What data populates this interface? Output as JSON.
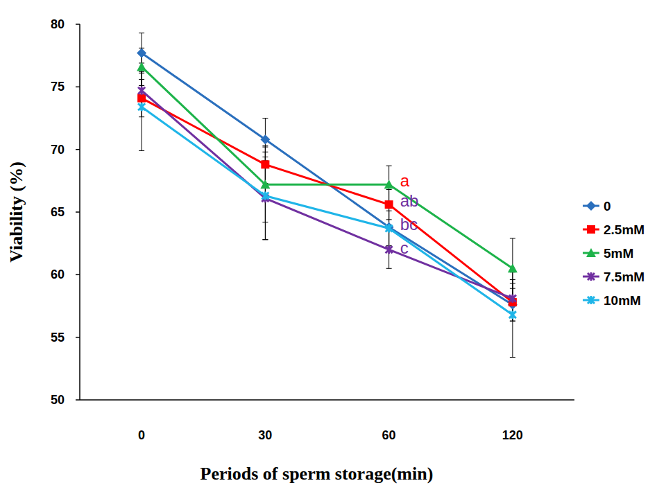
{
  "chart_data": {
    "type": "line",
    "x_label": "Periods of sperm storage(min)",
    "y_label": "Viability (%)",
    "categories": [
      "0",
      "30",
      "60",
      "120"
    ],
    "ylim": [
      50,
      80
    ],
    "yticks": [
      50,
      55,
      60,
      65,
      70,
      75,
      80
    ],
    "grid": false,
    "legend": "right",
    "series": [
      {
        "name": "0",
        "color": "#2a6fbd",
        "marker": "diamond",
        "values": [
          77.7,
          70.8,
          63.8,
          57.6
        ],
        "errors": [
          1.6,
          1.7,
          1.5,
          1.3
        ]
      },
      {
        "name": "2.5mM",
        "color": "#ff0000",
        "marker": "square",
        "values": [
          74.1,
          68.8,
          65.6,
          57.8
        ],
        "errors": [
          1.5,
          1.5,
          1.2,
          1.5
        ]
      },
      {
        "name": "5mM",
        "color": "#1db34a",
        "marker": "triangle",
        "values": [
          76.6,
          67.2,
          67.2,
          60.5
        ],
        "errors": [
          1.5,
          3.0,
          1.5,
          2.4
        ]
      },
      {
        "name": "7.5mM",
        "color": "#7030a0",
        "marker": "star",
        "values": [
          74.7,
          66.1,
          62.0,
          58.1
        ],
        "errors": [
          1.5,
          3.3,
          1.5,
          1.5
        ]
      },
      {
        "name": "10mM",
        "color": "#1fb5e8",
        "marker": "star",
        "values": [
          73.4,
          66.3,
          63.7,
          56.8
        ],
        "errors": [
          3.5,
          3.5,
          1.4,
          3.4
        ]
      }
    ],
    "annotations": [
      {
        "text": "a",
        "category": "60",
        "value": 67.5,
        "color": "#ff0000"
      },
      {
        "text": "ab",
        "category": "60",
        "value": 65.9,
        "color": "#7030a0"
      },
      {
        "text": "bc",
        "category": "60",
        "value": 64.0,
        "color": "#7030a0"
      },
      {
        "text": "c",
        "category": "60",
        "value": 62.1,
        "color": "#7030a0"
      }
    ]
  }
}
